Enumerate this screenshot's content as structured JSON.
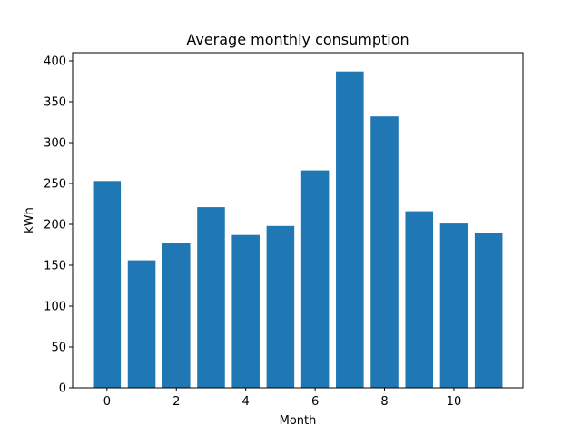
{
  "chart_data": {
    "type": "bar",
    "title": "Average monthly consumption",
    "xlabel": "Month",
    "ylabel": "kWh",
    "x": [
      0,
      1,
      2,
      3,
      4,
      5,
      6,
      7,
      8,
      9,
      10,
      11
    ],
    "values": [
      253,
      156,
      177,
      221,
      187,
      198,
      266,
      387,
      332,
      216,
      201,
      189
    ],
    "xlim": [
      -0.99,
      11.99
    ],
    "ylim": [
      0,
      410
    ],
    "xticks": [
      0,
      2,
      4,
      6,
      8,
      10
    ],
    "xtick_labels": [
      "0",
      "2",
      "4",
      "6",
      "8",
      "10"
    ],
    "yticks": [
      0,
      50,
      100,
      150,
      200,
      250,
      300,
      350,
      400
    ],
    "ytick_labels": [
      "0",
      "50",
      "100",
      "150",
      "200",
      "250",
      "300",
      "350",
      "400"
    ],
    "bar_color": "#1f77b4",
    "grid": false,
    "legend": false
  }
}
